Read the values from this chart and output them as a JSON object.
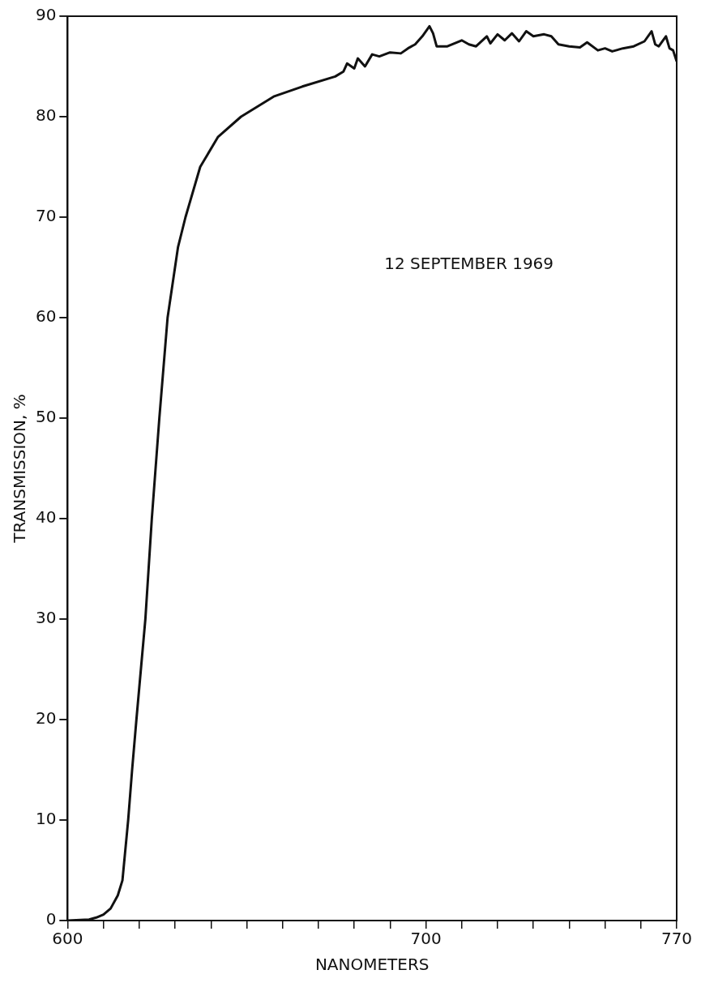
{
  "chart_data": {
    "type": "line",
    "xlabel": "NANOMETERS",
    "ylabel": "TRANSMISSION, %",
    "annotations": [
      "12 SEPTEMBER 1969"
    ],
    "xlim": [
      600,
      770
    ],
    "xticks": [
      600,
      {
        "value": 610,
        "label": null
      },
      {
        "value": 620,
        "label": null
      },
      {
        "value": 630,
        "label": null
      },
      {
        "value": 640,
        "label": null
      },
      {
        "value": 650,
        "label": null
      },
      {
        "value": 660,
        "label": null
      },
      {
        "value": 670,
        "label": null
      },
      {
        "value": 680,
        "label": null
      },
      {
        "value": 690,
        "label": null
      },
      700,
      {
        "value": 710,
        "label": null
      },
      {
        "value": 720,
        "label": null
      },
      {
        "value": 730,
        "label": null
      },
      {
        "value": 740,
        "label": null
      },
      {
        "value": 750,
        "label": null
      },
      {
        "value": 760,
        "label": null
      },
      770
    ],
    "ylim": [
      0,
      90
    ],
    "yticks": [
      0,
      10,
      20,
      30,
      40,
      50,
      60,
      70,
      80,
      90
    ],
    "marker": "none",
    "line_style": "solid",
    "legend": false,
    "series": [
      {
        "color": "#111111",
        "x": [
          600,
          606,
          608,
          610,
          612,
          614,
          615.3,
          616.9,
          618,
          619.2,
          621.7,
          623.5,
          625.6,
          627.9,
          630.8,
          632.9,
          637,
          642,
          648.4,
          657.5,
          665.5,
          674.7,
          677,
          678,
          680,
          681,
          683,
          685,
          687,
          690,
          693,
          695,
          697,
          699,
          701,
          702,
          703,
          706,
          710,
          712,
          714,
          717,
          718,
          720,
          722,
          724,
          726,
          728,
          730,
          733,
          735,
          737,
          740,
          743,
          745,
          748,
          750,
          752,
          755,
          758,
          761,
          763,
          764,
          765,
          767,
          768,
          769,
          770
        ],
        "values": [
          0,
          0.1,
          0.3,
          0.6,
          1.2,
          2.5,
          4,
          10,
          15,
          20,
          30,
          40,
          50,
          60,
          67,
          70,
          75,
          78,
          80,
          82,
          83,
          84,
          84.5,
          85.3,
          84.8,
          85.8,
          85,
          86.2,
          86,
          86.4,
          86.3,
          86.8,
          87.2,
          88,
          89,
          88.3,
          87,
          87,
          87.6,
          87.2,
          87,
          88,
          87.3,
          88.2,
          87.6,
          88.3,
          87.5,
          88.5,
          88,
          88.2,
          88,
          87.2,
          87,
          86.9,
          87.4,
          86.6,
          86.8,
          86.5,
          86.8,
          87,
          87.5,
          88.5,
          87.2,
          87,
          88,
          86.8,
          86.6,
          85.5
        ]
      }
    ]
  }
}
